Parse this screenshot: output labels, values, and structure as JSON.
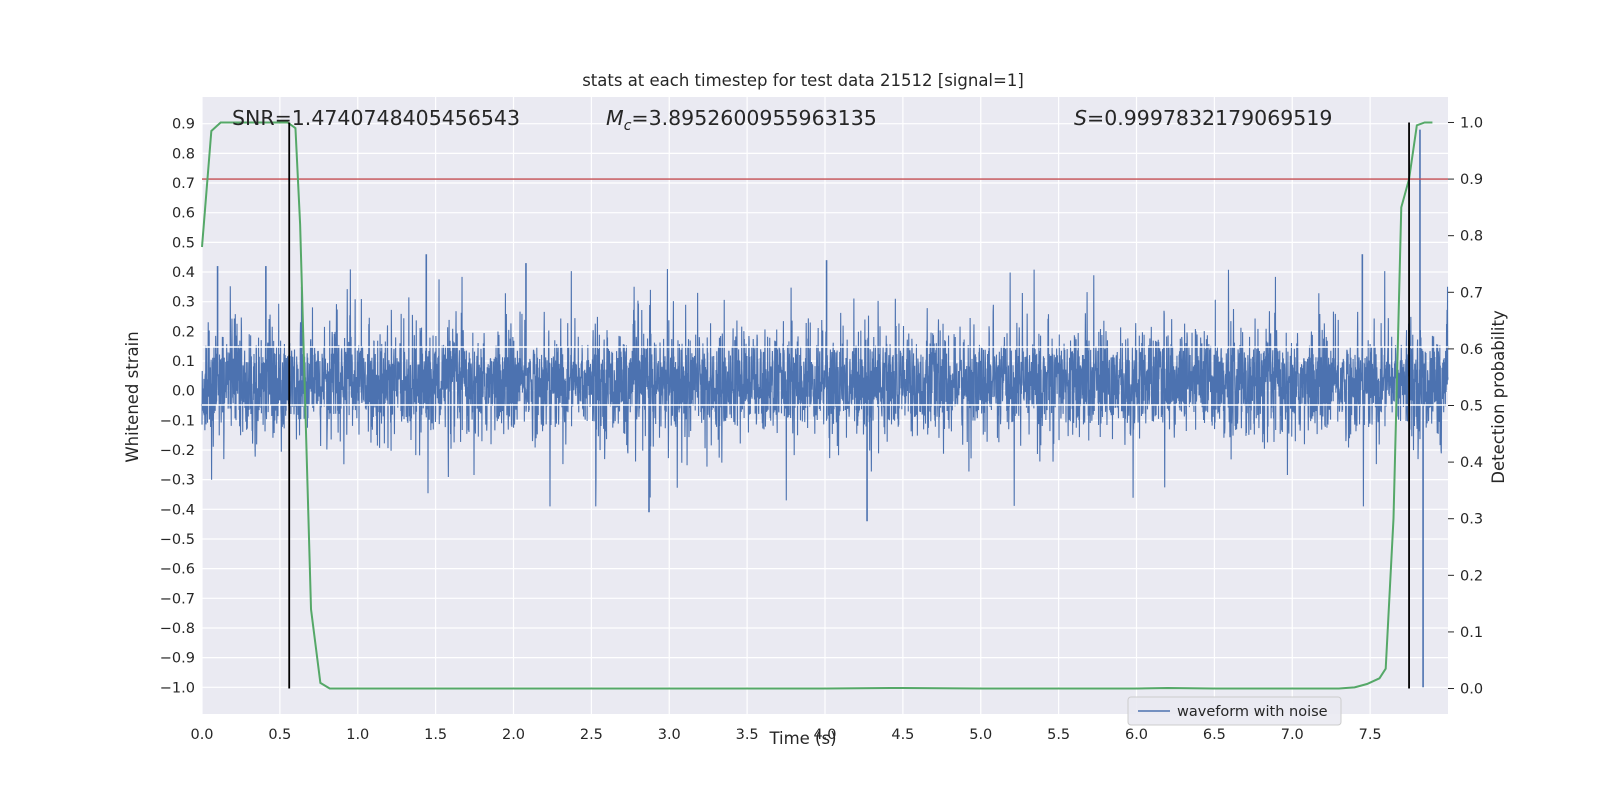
{
  "chart_data": {
    "type": "line",
    "title": "stats at each timestep for test data 21512 [signal=1]",
    "xlabel": "Time (s)",
    "ylabel": "Whitened strain",
    "y2label": "Detection probability",
    "xlim": [
      0.0,
      8.0
    ],
    "ylim": [
      -1.09,
      0.99
    ],
    "y2lim": [
      -0.045,
      1.045
    ],
    "xticks": [
      "0.0",
      "0.5",
      "1.0",
      "1.5",
      "2.0",
      "2.5",
      "3.0",
      "3.5",
      "4.0",
      "4.5",
      "5.0",
      "5.5",
      "6.0",
      "6.5",
      "7.0",
      "7.5"
    ],
    "yticks": [
      "0.9",
      "0.8",
      "0.7",
      "0.6",
      "0.5",
      "0.4",
      "0.3",
      "0.2",
      "0.1",
      "0.0",
      "−0.1",
      "−0.2",
      "−0.3",
      "−0.4",
      "−0.5",
      "−0.6",
      "−0.7",
      "−0.8",
      "−0.9",
      "−1.0"
    ],
    "y2ticks": [
      "1.0",
      "0.9",
      "0.8",
      "0.7",
      "0.6",
      "0.5",
      "0.4",
      "0.3",
      "0.2",
      "0.1",
      "0.0"
    ],
    "grid": true,
    "legend_placement": "lower-right",
    "annotations": {
      "snr": "SNR=1.4740748405456543",
      "mc_symbol": "M",
      "mc_subscript": "c",
      "mc_value": "=3.8952600955963135",
      "s_symbol": "S",
      "s_value": "=0.9997832179069519"
    },
    "series": [
      {
        "name": "waveform with noise",
        "axis": "left",
        "color": "#4c72b0",
        "description_band": {
          "typical_range": [
            -0.2,
            0.25
          ],
          "peaks_max": 0.46,
          "peaks_min": -0.44
        },
        "notable_spikes": [
          {
            "x": 0.1,
            "y": 0.42
          },
          {
            "x": 0.41,
            "y": 0.42
          },
          {
            "x": 0.64,
            "y": 0.35
          },
          {
            "x": 1.44,
            "y": 0.46
          },
          {
            "x": 2.08,
            "y": 0.43
          },
          {
            "x": 2.87,
            "y": -0.41
          },
          {
            "x": 4.01,
            "y": 0.44
          },
          {
            "x": 4.27,
            "y": -0.44
          },
          {
            "x": 7.45,
            "y": 0.46
          },
          {
            "x": 7.82,
            "y": 0.88
          },
          {
            "x": 7.84,
            "y": -1.0
          }
        ]
      },
      {
        "name": "",
        "axis": "right",
        "color": "#55a868",
        "x": [
          0.0,
          0.06,
          0.12,
          0.2,
          0.3,
          0.4,
          0.5,
          0.55,
          0.6,
          0.63,
          0.7,
          0.76,
          0.82,
          1.0,
          2.0,
          3.0,
          4.0,
          4.5,
          5.0,
          5.5,
          6.0,
          6.2,
          6.5,
          7.0,
          7.3,
          7.4,
          7.48,
          7.56,
          7.6,
          7.65,
          7.7,
          7.75,
          7.8,
          7.85,
          7.9
        ],
        "y": [
          0.78,
          0.985,
          1.0,
          1.0,
          1.0,
          1.0,
          1.0,
          1.0,
          0.99,
          0.82,
          0.14,
          0.01,
          0.0,
          0.0,
          0.0,
          0.0,
          0.0,
          0.001,
          0.0,
          0.0,
          0.0,
          0.001,
          0.0,
          0.0,
          0.0,
          0.002,
          0.008,
          0.018,
          0.035,
          0.3,
          0.85,
          0.9,
          0.995,
          1.0,
          1.0
        ]
      }
    ],
    "threshold": {
      "axis": "right",
      "y": 0.9,
      "color": "#c44e52"
    },
    "vertical_markers": {
      "x": [
        0.56,
        7.75
      ],
      "y2_range": [
        0.0,
        1.0
      ],
      "color": "#000000"
    }
  }
}
